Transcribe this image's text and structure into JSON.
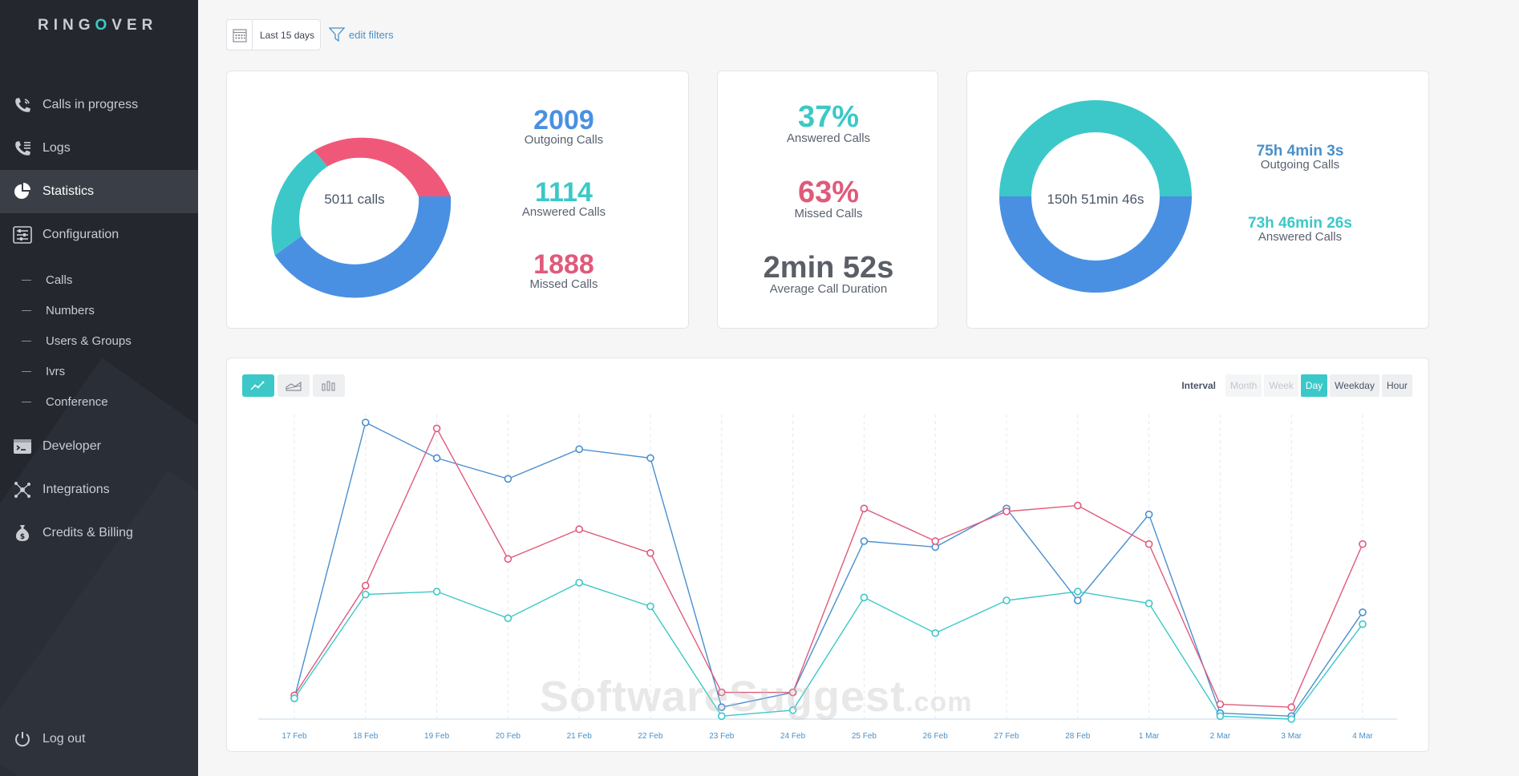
{
  "app": {
    "logo_prefix": "RINGOVER",
    "accent": "#3cc8c8"
  },
  "sidebar": {
    "items": [
      {
        "label": "Calls in progress",
        "icon": "phone-icon"
      },
      {
        "label": "Logs",
        "icon": "phone-log-icon"
      },
      {
        "label": "Statistics",
        "icon": "pie-chart-icon",
        "active": true
      },
      {
        "label": "Configuration",
        "icon": "sliders-icon"
      }
    ],
    "sub_items": [
      "Calls",
      "Numbers",
      "Users & Groups",
      "Ivrs",
      "Conference"
    ],
    "items_bottom": [
      {
        "label": "Developer",
        "icon": "terminal-icon"
      },
      {
        "label": "Integrations",
        "icon": "network-icon"
      },
      {
        "label": "Credits & Billing",
        "icon": "money-bag-icon"
      }
    ],
    "logout": "Log out"
  },
  "filters": {
    "date_range": "Last 15 days",
    "edit": "edit filters"
  },
  "calls_card": {
    "center": "5011 calls",
    "outgoing": {
      "value": "2009",
      "label": "Outgoing Calls",
      "color": "#4a90e2"
    },
    "answered": {
      "value": "1114",
      "label": "Answered Calls",
      "color": "#3cc8c8"
    },
    "missed": {
      "value": "1888",
      "label": "Missed Calls",
      "color": "#f0587a"
    }
  },
  "rate_card": {
    "answered": {
      "value": "37%",
      "label": "Answered Calls"
    },
    "missed": {
      "value": "63%",
      "label": "Missed Calls"
    },
    "average": {
      "value": "2min 52s",
      "label": "Average Call Duration"
    }
  },
  "duration_card": {
    "center": "150h 51min 46s",
    "outgoing": {
      "value": "75h 4min 3s",
      "label": "Outgoing Calls"
    },
    "answered": {
      "value": "73h 46min 26s",
      "label": "Answered Calls"
    }
  },
  "interval": {
    "label": "Interval",
    "options": [
      "Month",
      "Week",
      "Day",
      "Weekday",
      "Hour"
    ],
    "selected": "Day"
  },
  "watermark": {
    "main": "SoftwareSuggest",
    "suffix": ".com"
  },
  "chart_data": {
    "type": "line",
    "categories": [
      "17 Feb",
      "18 Feb",
      "19 Feb",
      "20 Feb",
      "21 Feb",
      "22 Feb",
      "23 Feb",
      "24 Feb",
      "25 Feb",
      "26 Feb",
      "27 Feb",
      "28 Feb",
      "1 Mar",
      "2 Mar",
      "3 Mar",
      "4 Mar"
    ],
    "ylim": [
      0,
      100
    ],
    "grid": "vertical-dashed",
    "series": [
      {
        "color": "#4a8fd0",
        "values": [
          7,
          100,
          88,
          81,
          91,
          88,
          4,
          9,
          60,
          58,
          71,
          40,
          69,
          2,
          1,
          36
        ]
      },
      {
        "color": "#e05a7a",
        "values": [
          8,
          45,
          98,
          54,
          64,
          56,
          9,
          9,
          71,
          60,
          70,
          72,
          59,
          5,
          4,
          59
        ]
      },
      {
        "color": "#3cc8c8",
        "values": [
          7,
          42,
          43,
          34,
          46,
          38,
          1,
          3,
          41,
          29,
          40,
          43,
          39,
          1,
          0,
          32
        ]
      }
    ]
  }
}
